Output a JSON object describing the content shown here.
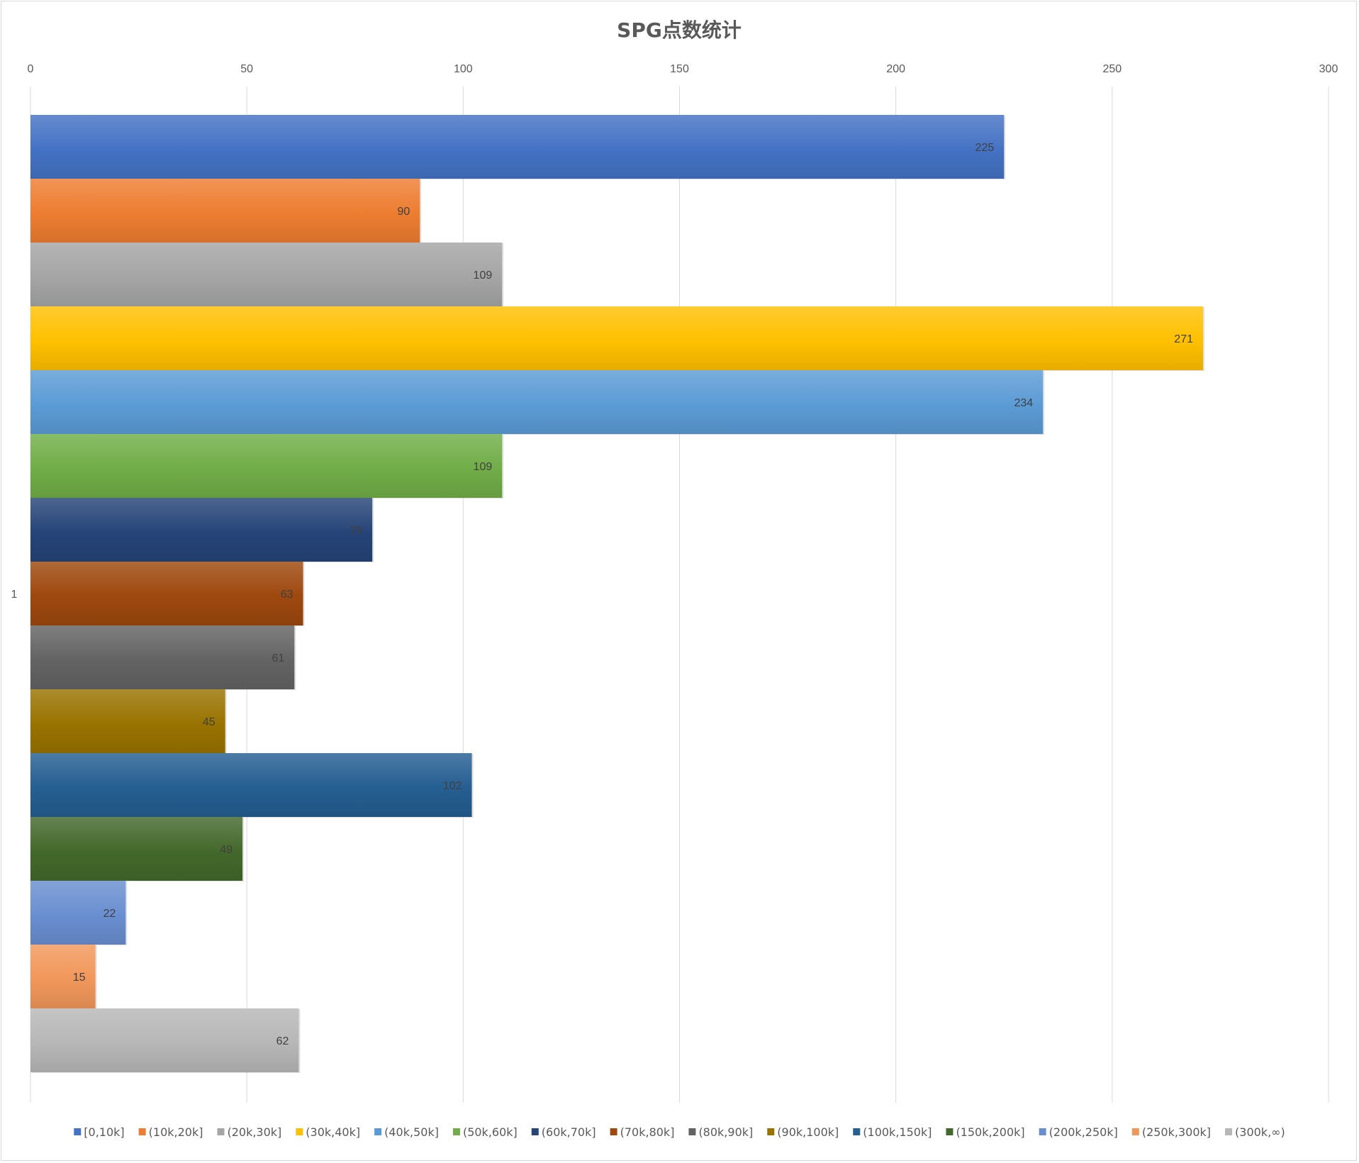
{
  "chart_data": {
    "type": "bar",
    "orientation": "horizontal",
    "title": "SPG点数统计",
    "categories": [
      "1"
    ],
    "xlim": [
      0,
      300
    ],
    "x_ticks": [
      0,
      50,
      100,
      150,
      200,
      250,
      300
    ],
    "grid": true,
    "legend_position": "bottom",
    "series": [
      {
        "name": "[0,10k]",
        "values": [
          225
        ],
        "color": "#4472c4"
      },
      {
        "name": "(10k,20k]",
        "values": [
          90
        ],
        "color": "#ed7d31"
      },
      {
        "name": "(20k,30k]",
        "values": [
          109
        ],
        "color": "#a5a5a5"
      },
      {
        "name": "(30k,40k]",
        "values": [
          271
        ],
        "color": "#ffc000"
      },
      {
        "name": "(40k,50k]",
        "values": [
          234
        ],
        "color": "#5b9bd5"
      },
      {
        "name": "(50k,60k]",
        "values": [
          109
        ],
        "color": "#70ad47"
      },
      {
        "name": "(60k,70k]",
        "values": [
          79
        ],
        "color": "#264478"
      },
      {
        "name": "(70k,80k]",
        "values": [
          63
        ],
        "color": "#9e480e"
      },
      {
        "name": "(80k,90k]",
        "values": [
          61
        ],
        "color": "#636363"
      },
      {
        "name": "(90k,100k]",
        "values": [
          45
        ],
        "color": "#997300"
      },
      {
        "name": "(100k,150k]",
        "values": [
          102
        ],
        "color": "#255e91"
      },
      {
        "name": "(150k,200k]",
        "values": [
          49
        ],
        "color": "#43682b"
      },
      {
        "name": "(200k,250k]",
        "values": [
          22
        ],
        "color": "#698ed0"
      },
      {
        "name": "(250k,300k]",
        "values": [
          15
        ],
        "color": "#f1975a"
      },
      {
        "name": "(300k,∞)",
        "values": [
          62
        ],
        "color": "#b7b7b7"
      }
    ]
  }
}
